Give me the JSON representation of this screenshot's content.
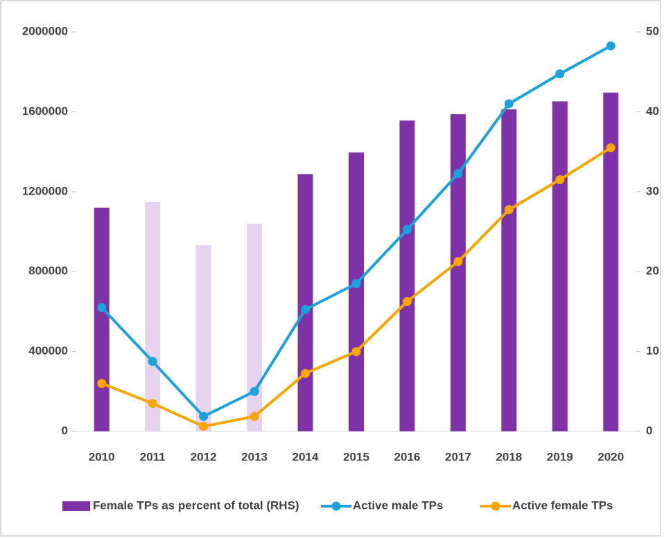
{
  "chart_data": {
    "type": "bar",
    "categories": [
      "2010",
      "2011",
      "2012",
      "2013",
      "2014",
      "2015",
      "2016",
      "2017",
      "2018",
      "2019",
      "2020"
    ],
    "series": [
      {
        "name": "Female TPs as percent of total (RHS)",
        "type": "bar",
        "axis": "y2",
        "color": "#7f32a8",
        "colors": [
          "#7f32a8",
          "#e6d3f0",
          "#e6d3f0",
          "#e6d3f0",
          "#7f32a8",
          "#7f32a8",
          "#7f32a8",
          "#7f32a8",
          "#7f32a8",
          "#7f32a8",
          "#7f32a8"
        ],
        "values": [
          28,
          28.7,
          23.3,
          26,
          32.2,
          34.9,
          38.9,
          39.7,
          40.3,
          41.3,
          42.4
        ]
      },
      {
        "name": "Active male TPs",
        "type": "line",
        "color": "#1ba1dc",
        "values": [
          620000,
          350000,
          75000,
          200000,
          610000,
          740000,
          1010000,
          1290000,
          1640000,
          1790000,
          1930000
        ]
      },
      {
        "name": "Active female TPs",
        "type": "line",
        "color": "#f5a700",
        "values": [
          240000,
          140000,
          25000,
          75000,
          290000,
          400000,
          650000,
          850000,
          1110000,
          1260000,
          1420000
        ]
      }
    ],
    "ylim": [
      0,
      2000000
    ],
    "yticks": [
      0,
      400000,
      800000,
      1200000,
      1600000,
      2000000
    ],
    "y2lim": [
      0,
      50
    ],
    "y2ticks": [
      0,
      10,
      20,
      30,
      40,
      50
    ],
    "legend": "bottom"
  }
}
